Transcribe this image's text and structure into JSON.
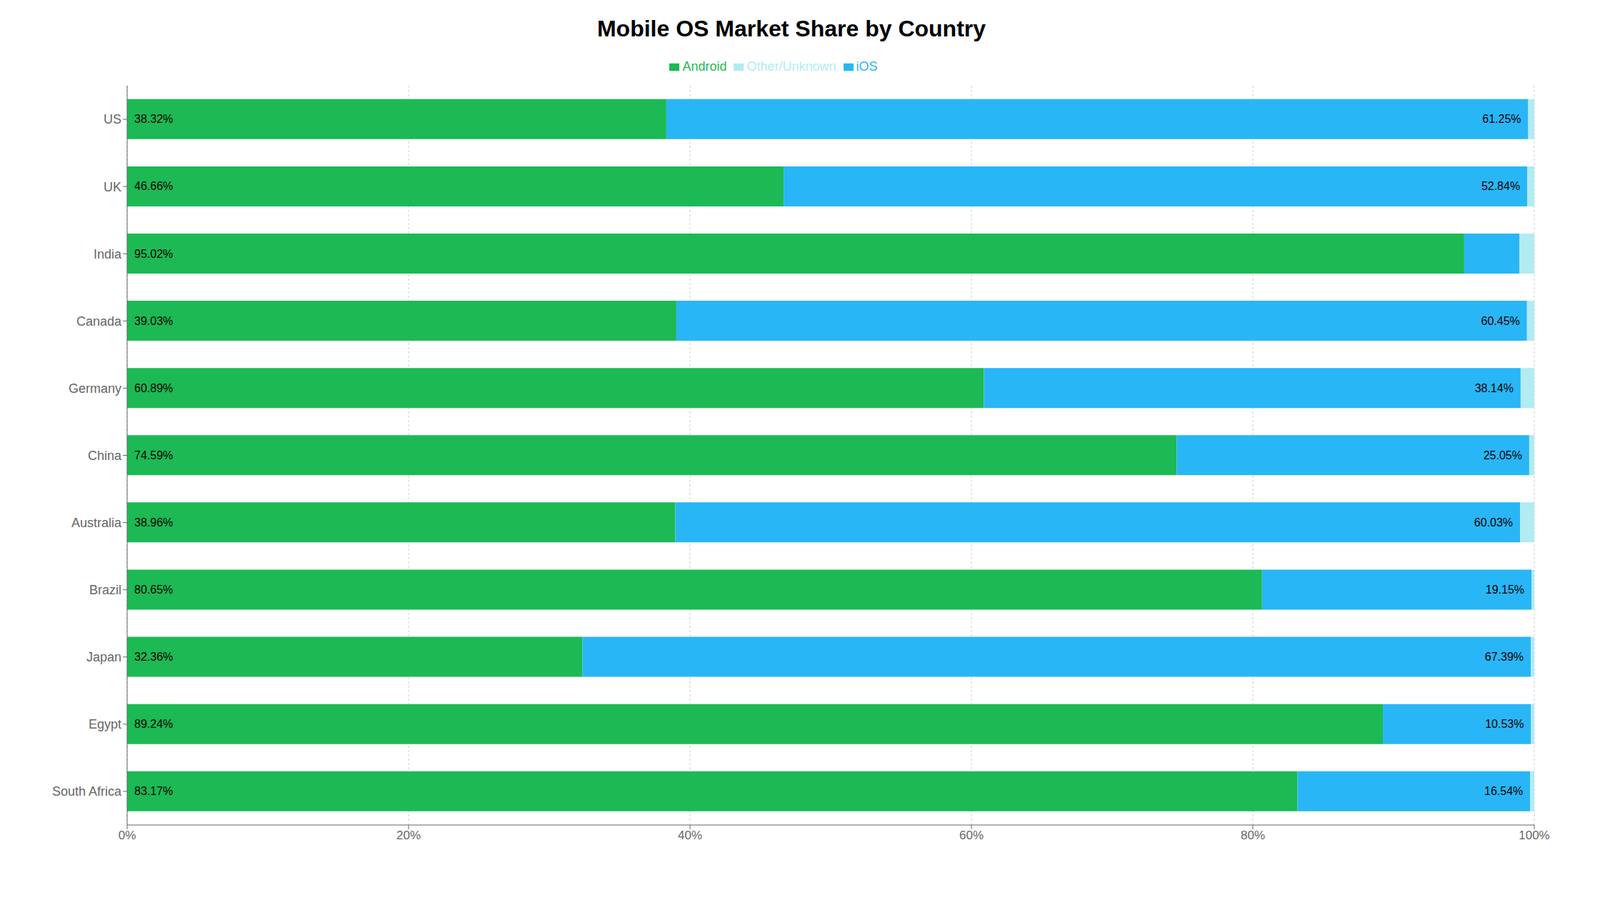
{
  "chart_data": {
    "type": "bar",
    "title": "Mobile OS Market Share by Country",
    "orientation": "horizontal",
    "stacked": true,
    "data_labels": true,
    "grid": true,
    "legend": "top",
    "categories": [
      "US",
      "UK",
      "India",
      "Canada",
      "Germany",
      "China",
      "Australia",
      "Brazil",
      "Japan",
      "Egypt",
      "South Africa"
    ],
    "series": [
      {
        "name": "Android",
        "color": "#1DB954",
        "values": [
          38.32,
          46.66,
          95.02,
          39.03,
          60.89,
          74.59,
          38.96,
          80.65,
          32.36,
          89.24,
          83.17
        ],
        "value_labels": [
          "38.32%",
          "46.66%",
          "95.02%",
          "39.03%",
          "60.89%",
          "74.59%",
          "38.96%",
          "80.65%",
          "32.36%",
          "89.24%",
          "83.17%"
        ]
      },
      {
        "name": "iOS",
        "color": "#29B6F6",
        "values": [
          61.25,
          52.84,
          3.93,
          60.45,
          38.14,
          25.05,
          60.03,
          19.15,
          67.39,
          10.53,
          16.54
        ],
        "value_labels": [
          "61.25%",
          "52.84%",
          null,
          "60.45%",
          "38.14%",
          "25.05%",
          "60.03%",
          "19.15%",
          "67.39%",
          "10.53%",
          "16.54%"
        ]
      },
      {
        "name": "Other/Unknown",
        "color": "#B2EBF2",
        "values": [
          0.43,
          0.5,
          1.05,
          0.52,
          0.97,
          0.36,
          1.01,
          0.2,
          0.25,
          0.23,
          0.29
        ]
      }
    ],
    "xlim": [
      0,
      100
    ],
    "xticks": [
      {
        "value": 0,
        "label": "0%"
      },
      {
        "value": 20,
        "label": "20%"
      },
      {
        "value": 40,
        "label": "40%"
      },
      {
        "value": 60,
        "label": "60%"
      },
      {
        "value": 80,
        "label": "80%"
      },
      {
        "value": 100,
        "label": "100%"
      }
    ]
  }
}
